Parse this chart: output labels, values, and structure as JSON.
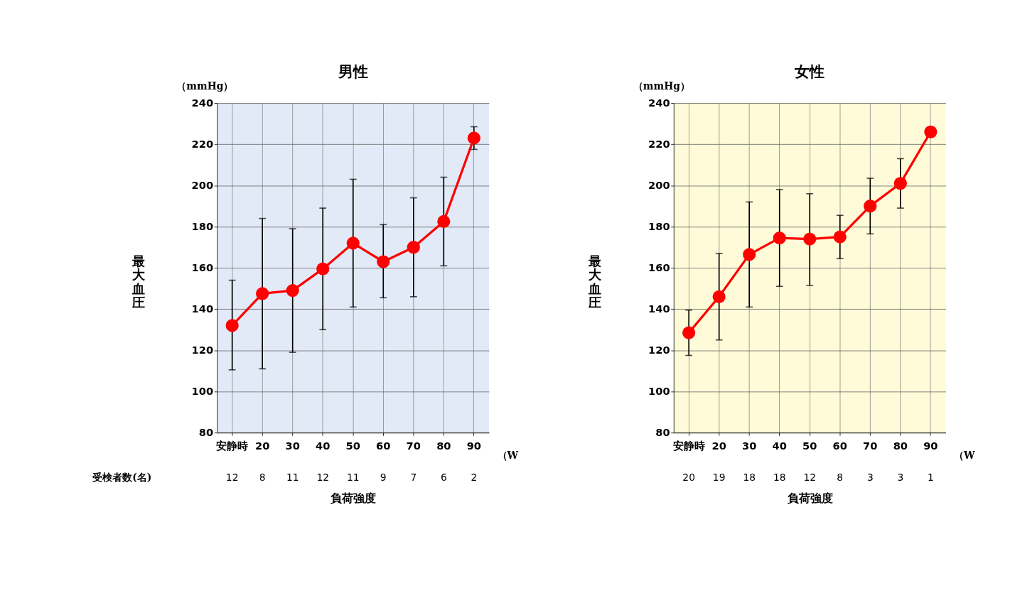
{
  "chart_data": [
    {
      "type": "line",
      "title": "男性",
      "xlabel": "負荷強度",
      "ylabel": "最大血圧",
      "categories": [
        "安静時",
        "20",
        "30",
        "40",
        "50",
        "60",
        "70",
        "80",
        "90"
      ],
      "series": [
        {
          "color": "#ff0000",
          "values": [
            132,
            147.5,
            149,
            159.5,
            172,
            163,
            170,
            182.5,
            223
          ],
          "errors": [
            [
              110.5,
              154
            ],
            [
              111,
              184
            ],
            [
              119,
              179
            ],
            [
              130,
              189
            ],
            [
              141,
              203
            ],
            [
              145.5,
              181
            ],
            [
              146,
              194
            ],
            [
              161,
              204
            ],
            [
              217.5,
              228.5
            ]
          ]
        }
      ],
      "ylim": [
        80,
        240
      ],
      "yticks": [
        80,
        100,
        120,
        140,
        160,
        180,
        200,
        220,
        240
      ],
      "grid": true,
      "marker": "circle",
      "annotations": [
        "（mmHg）",
        "（W",
        "受検者数(名)",
        "12",
        "8",
        "11",
        "12",
        "11",
        "9",
        "7",
        "6",
        "2"
      ]
    },
    {
      "type": "line",
      "title": "女性",
      "xlabel": "負荷強度",
      "ylabel": "最大血圧",
      "categories": [
        "安静時",
        "20",
        "30",
        "40",
        "50",
        "60",
        "70",
        "80",
        "90"
      ],
      "series": [
        {
          "color": "#ff0000",
          "values": [
            128.5,
            146,
            166.5,
            174.5,
            174,
            175,
            190,
            201,
            226
          ],
          "errors": [
            [
              117.5,
              139.5
            ],
            [
              125,
              167
            ],
            [
              141,
              192
            ],
            [
              151,
              198
            ],
            [
              151.5,
              196
            ],
            [
              164.5,
              185.5
            ],
            [
              176.5,
              203.5
            ],
            [
              189,
              213
            ],
            null
          ]
        }
      ],
      "ylim": [
        80,
        240
      ],
      "yticks": [
        80,
        100,
        120,
        140,
        160,
        180,
        200,
        220,
        240
      ],
      "grid": true,
      "marker": "circle",
      "annotations": [
        "（mmHg）",
        "（W",
        "20",
        "19",
        "18",
        "18",
        "12",
        "8",
        "3",
        "3",
        "1"
      ]
    }
  ]
}
